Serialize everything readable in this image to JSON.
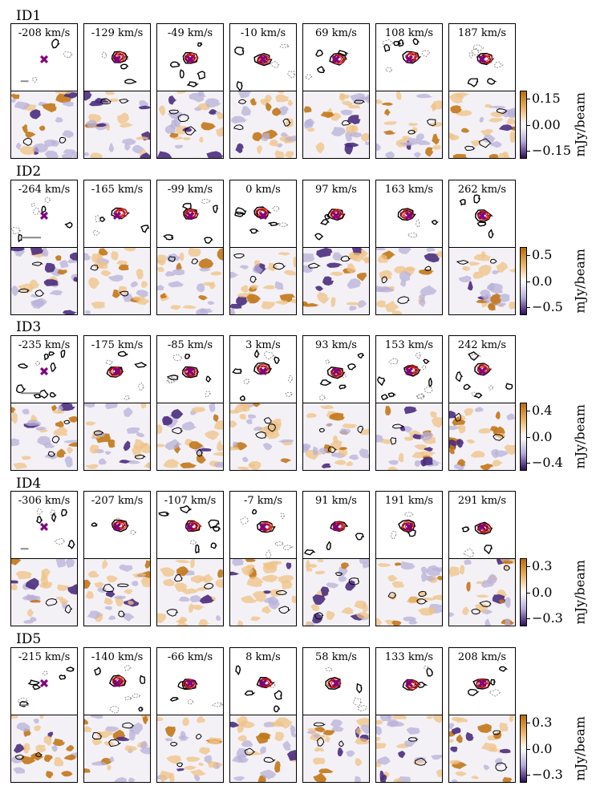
{
  "panels": [
    {
      "id": "ID1",
      "velocities": [
        "-208 km/s",
        "-129 km/s",
        "-49 km/s",
        "-10 km/s",
        "69 km/s",
        "108 km/s",
        "187 km/s"
      ],
      "cbar": {
        "ticks": [
          "0.15",
          "0.00",
          "−0.15"
        ],
        "unit": "mJy/beam"
      }
    },
    {
      "id": "ID2",
      "velocities": [
        "-264 km/s",
        "-165 km/s",
        "-99 km/s",
        "0 km/s",
        "97 km/s",
        "163 km/s",
        "262 km/s"
      ],
      "cbar": {
        "ticks": [
          "0.5",
          "0.0",
          "−0.5"
        ],
        "unit": "mJy/beam"
      }
    },
    {
      "id": "ID3",
      "velocities": [
        "-235 km/s",
        "-175 km/s",
        "-85 km/s",
        "3 km/s",
        "93 km/s",
        "153 km/s",
        "242 km/s"
      ],
      "cbar": {
        "ticks": [
          "0.4",
          "0.0",
          "−0.4"
        ],
        "unit": "mJy/beam"
      }
    },
    {
      "id": "ID4",
      "velocities": [
        "-306 km/s",
        "-207 km/s",
        "-107 km/s",
        "-7 km/s",
        "91 km/s",
        "191 km/s",
        "291 km/s"
      ],
      "cbar": {
        "ticks": [
          "0.3",
          "0.0",
          "−0.3"
        ],
        "unit": "mJy/beam"
      }
    },
    {
      "id": "ID5",
      "velocities": [
        "-215 km/s",
        "-140 km/s",
        "-66 km/s",
        "8 km/s",
        "58 km/s",
        "133 km/s",
        "208 km/s"
      ],
      "cbar": {
        "ticks": [
          "0.3",
          "0.0",
          "−0.3"
        ],
        "unit": "mJy/beam"
      }
    }
  ],
  "colors": {
    "contour": "#000000",
    "model": "#d81b1b",
    "marker": "#800080",
    "pos": "#b86a0a",
    "neg": "#2a0d5c",
    "scalebar": "#888888"
  }
}
